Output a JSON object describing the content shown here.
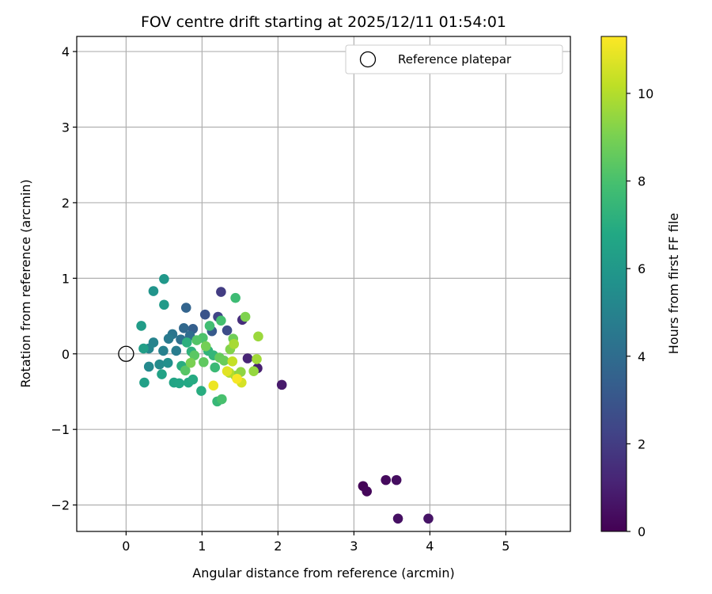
{
  "chart_data": {
    "type": "scatter",
    "title": "FOV centre drift starting at 2025/12/11 01:54:01",
    "xlabel": "Angular distance from reference (arcmin)",
    "ylabel": "Rotation from reference (arcmin)",
    "xlim": [
      -0.65,
      5.85
    ],
    "ylim": [
      -2.35,
      4.2
    ],
    "xticks": [
      0,
      1,
      2,
      3,
      4,
      5
    ],
    "yticks": [
      -2,
      -1,
      0,
      1,
      2,
      3,
      4
    ],
    "grid": true,
    "legend": {
      "placement": "top-right",
      "entries": [
        "Reference platepar"
      ]
    },
    "reference_point": {
      "x": 0,
      "y": 0,
      "name": "Reference platepar"
    },
    "colorbar": {
      "label": "Hours from first FF file",
      "colormap": "viridis",
      "range": [
        0,
        11.3
      ],
      "ticks": [
        0,
        2,
        4,
        6,
        8,
        10
      ]
    },
    "points": [
      {
        "x": 3.12,
        "y": -1.75,
        "c": 0.1
      },
      {
        "x": 3.17,
        "y": -1.82,
        "c": 0.2
      },
      {
        "x": 3.42,
        "y": -1.67,
        "c": 0.3
      },
      {
        "x": 3.56,
        "y": -1.67,
        "c": 0.4
      },
      {
        "x": 3.58,
        "y": -2.18,
        "c": 0.5
      },
      {
        "x": 3.98,
        "y": -2.18,
        "c": 0.6
      },
      {
        "x": 2.05,
        "y": -0.41,
        "c": 0.8
      },
      {
        "x": 1.73,
        "y": -0.19,
        "c": 1.0
      },
      {
        "x": 1.6,
        "y": -0.06,
        "c": 1.2
      },
      {
        "x": 1.53,
        "y": 0.45,
        "c": 1.5
      },
      {
        "x": 1.25,
        "y": 0.82,
        "c": 2.0
      },
      {
        "x": 1.21,
        "y": 0.49,
        "c": 2.3
      },
      {
        "x": 1.33,
        "y": 0.31,
        "c": 2.6
      },
      {
        "x": 1.04,
        "y": 0.52,
        "c": 2.9
      },
      {
        "x": 1.13,
        "y": 0.3,
        "c": 3.2
      },
      {
        "x": 0.88,
        "y": 0.33,
        "c": 3.4
      },
      {
        "x": 0.79,
        "y": 0.61,
        "c": 3.6
      },
      {
        "x": 0.76,
        "y": 0.34,
        "c": 3.8
      },
      {
        "x": 0.84,
        "y": 0.24,
        "c": 4.0
      },
      {
        "x": 0.72,
        "y": 0.19,
        "c": 4.2
      },
      {
        "x": 0.61,
        "y": 0.26,
        "c": 4.4
      },
      {
        "x": 0.56,
        "y": 0.2,
        "c": 4.6
      },
      {
        "x": 0.66,
        "y": 0.04,
        "c": 4.7
      },
      {
        "x": 0.49,
        "y": 0.04,
        "c": 4.9
      },
      {
        "x": 0.36,
        "y": 0.15,
        "c": 5.0
      },
      {
        "x": 0.3,
        "y": 0.07,
        "c": 5.1
      },
      {
        "x": 0.3,
        "y": -0.17,
        "c": 5.3
      },
      {
        "x": 0.44,
        "y": -0.14,
        "c": 5.4
      },
      {
        "x": 0.55,
        "y": -0.12,
        "c": 5.6
      },
      {
        "x": 0.36,
        "y": 0.83,
        "c": 5.8
      },
      {
        "x": 0.5,
        "y": 0.99,
        "c": 6.0
      },
      {
        "x": 0.5,
        "y": 0.65,
        "c": 6.1
      },
      {
        "x": 0.2,
        "y": 0.37,
        "c": 6.2
      },
      {
        "x": 0.23,
        "y": 0.07,
        "c": 6.3
      },
      {
        "x": 0.24,
        "y": -0.38,
        "c": 6.4
      },
      {
        "x": 0.47,
        "y": -0.27,
        "c": 6.5
      },
      {
        "x": 0.63,
        "y": -0.38,
        "c": 6.6
      },
      {
        "x": 0.7,
        "y": -0.39,
        "c": 6.7
      },
      {
        "x": 0.82,
        "y": -0.38,
        "c": 6.8
      },
      {
        "x": 0.88,
        "y": -0.34,
        "c": 6.9
      },
      {
        "x": 0.99,
        "y": -0.49,
        "c": 7.0
      },
      {
        "x": 0.73,
        "y": -0.16,
        "c": 7.0
      },
      {
        "x": 0.8,
        "y": 0.15,
        "c": 7.1
      },
      {
        "x": 0.86,
        "y": 0.03,
        "c": 7.2
      },
      {
        "x": 1.08,
        "y": 0.04,
        "c": 7.3
      },
      {
        "x": 1.15,
        "y": -0.02,
        "c": 7.4
      },
      {
        "x": 1.2,
        "y": -0.63,
        "c": 7.5
      },
      {
        "x": 1.17,
        "y": -0.18,
        "c": 7.6
      },
      {
        "x": 1.44,
        "y": 0.74,
        "c": 7.7
      },
      {
        "x": 1.1,
        "y": 0.37,
        "c": 7.8
      },
      {
        "x": 1.25,
        "y": 0.44,
        "c": 7.9
      },
      {
        "x": 1.26,
        "y": -0.6,
        "c": 8.0
      },
      {
        "x": 1.01,
        "y": 0.21,
        "c": 8.1
      },
      {
        "x": 0.93,
        "y": 0.18,
        "c": 8.2
      },
      {
        "x": 0.78,
        "y": -0.22,
        "c": 8.3
      },
      {
        "x": 0.9,
        "y": -0.02,
        "c": 8.4
      },
      {
        "x": 1.02,
        "y": -0.11,
        "c": 8.5
      },
      {
        "x": 1.23,
        "y": -0.05,
        "c": 8.6
      },
      {
        "x": 1.29,
        "y": -0.09,
        "c": 8.7
      },
      {
        "x": 1.41,
        "y": 0.2,
        "c": 8.8
      },
      {
        "x": 1.05,
        "y": 0.1,
        "c": 8.9
      },
      {
        "x": 0.85,
        "y": -0.12,
        "c": 9.0
      },
      {
        "x": 1.57,
        "y": 0.49,
        "c": 9.1
      },
      {
        "x": 1.37,
        "y": 0.06,
        "c": 9.2
      },
      {
        "x": 1.44,
        "y": -0.29,
        "c": 9.3
      },
      {
        "x": 1.51,
        "y": -0.24,
        "c": 9.4
      },
      {
        "x": 1.68,
        "y": -0.23,
        "c": 9.5
      },
      {
        "x": 1.74,
        "y": 0.23,
        "c": 9.6
      },
      {
        "x": 1.72,
        "y": -0.07,
        "c": 9.7
      },
      {
        "x": 1.42,
        "y": 0.13,
        "c": 9.8
      },
      {
        "x": 1.36,
        "y": -0.25,
        "c": 10.0
      },
      {
        "x": 1.4,
        "y": -0.1,
        "c": 10.3
      },
      {
        "x": 1.52,
        "y": -0.38,
        "c": 10.6
      },
      {
        "x": 1.33,
        "y": -0.23,
        "c": 10.8
      },
      {
        "x": 1.15,
        "y": -0.42,
        "c": 11.0
      },
      {
        "x": 1.46,
        "y": -0.33,
        "c": 11.2
      }
    ]
  }
}
